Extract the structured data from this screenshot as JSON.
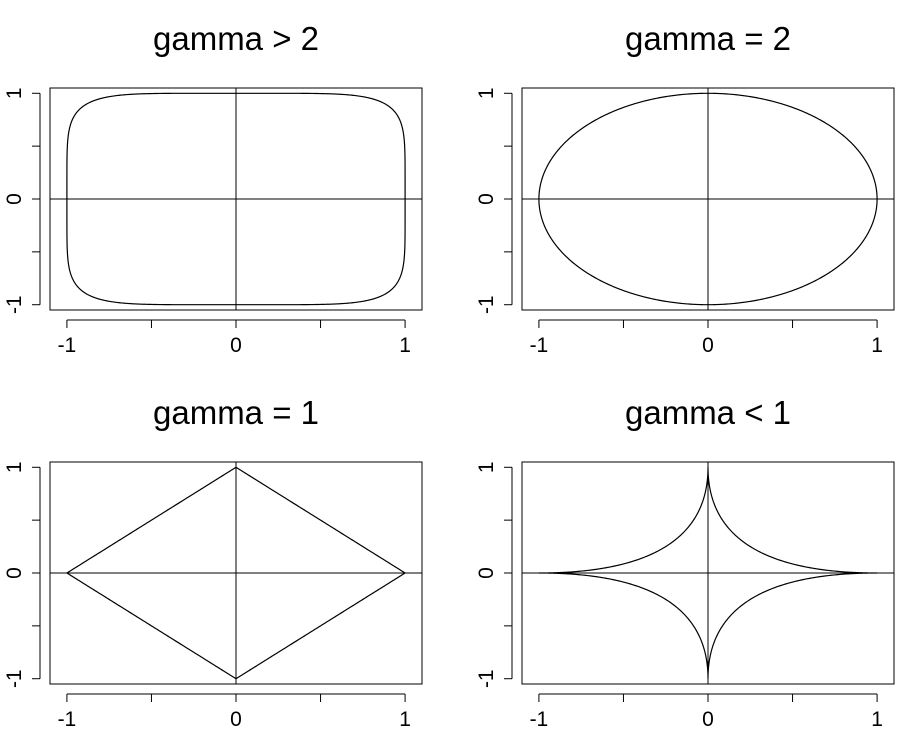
{
  "figure": {
    "panels_layout": "2x2"
  },
  "chart_data": [
    {
      "type": "line",
      "title": "gamma > 2",
      "xlabel": "",
      "ylabel": "",
      "curve": "superellipse",
      "gamma": 6,
      "xlim": [
        -1.1,
        1.1
      ],
      "ylim": [
        -1.05,
        1.05
      ],
      "xticks": [
        -1,
        -0.5,
        0,
        0.5,
        1
      ],
      "xtick_labels": [
        "-1",
        "",
        "0",
        "",
        "1"
      ],
      "yticks": [
        -1,
        -0.5,
        0,
        0.5,
        1
      ],
      "ytick_labels": [
        "-1",
        "",
        "0",
        "",
        "1"
      ],
      "reference_lines": {
        "x": 0,
        "y": 0
      },
      "grid": false,
      "color": "#000000"
    },
    {
      "type": "line",
      "title": "gamma = 2",
      "xlabel": "",
      "ylabel": "",
      "curve": "superellipse",
      "gamma": 2,
      "xlim": [
        -1.1,
        1.1
      ],
      "ylim": [
        -1.05,
        1.05
      ],
      "xticks": [
        -1,
        -0.5,
        0,
        0.5,
        1
      ],
      "xtick_labels": [
        "-1",
        "",
        "0",
        "",
        "1"
      ],
      "yticks": [
        -1,
        -0.5,
        0,
        0.5,
        1
      ],
      "ytick_labels": [
        "-1",
        "",
        "0",
        "",
        "1"
      ],
      "reference_lines": {
        "x": 0,
        "y": 0
      },
      "grid": false,
      "color": "#000000"
    },
    {
      "type": "line",
      "title": "gamma = 1",
      "xlabel": "",
      "ylabel": "",
      "curve": "superellipse",
      "gamma": 1,
      "xlim": [
        -1.1,
        1.1
      ],
      "ylim": [
        -1.05,
        1.05
      ],
      "xticks": [
        -1,
        -0.5,
        0,
        0.5,
        1
      ],
      "xtick_labels": [
        "-1",
        "",
        "0",
        "",
        "1"
      ],
      "yticks": [
        -1,
        -0.5,
        0,
        0.5,
        1
      ],
      "ytick_labels": [
        "-1",
        "",
        "0",
        "",
        "1"
      ],
      "reference_lines": {
        "x": 0,
        "y": 0
      },
      "grid": false,
      "color": "#000000"
    },
    {
      "type": "line",
      "title": "gamma < 1",
      "xlabel": "",
      "ylabel": "",
      "curve": "superellipse",
      "gamma": 0.5,
      "xlim": [
        -1.1,
        1.1
      ],
      "ylim": [
        -1.05,
        1.05
      ],
      "xticks": [
        -1,
        -0.5,
        0,
        0.5,
        1
      ],
      "xtick_labels": [
        "-1",
        "",
        "0",
        "",
        "1"
      ],
      "yticks": [
        -1,
        -0.5,
        0,
        0.5,
        1
      ],
      "ytick_labels": [
        "-1",
        "",
        "0",
        "",
        "1"
      ],
      "reference_lines": {
        "x": 0,
        "y": 0
      },
      "grid": false,
      "color": "#000000"
    }
  ]
}
